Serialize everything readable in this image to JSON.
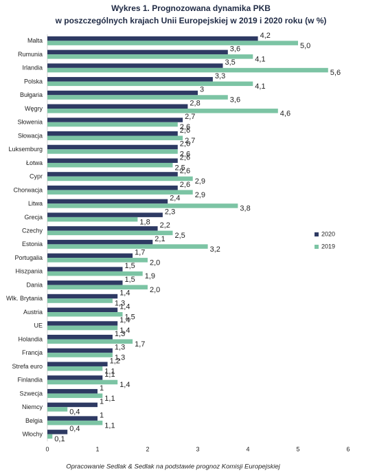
{
  "chart_data": {
    "type": "hbar",
    "title": [
      "Wykres 1. Prognozowana dynamika PKB",
      "w poszczególnych krajach Unii Europejskiej w 2019 i 2020 roku (w %)"
    ],
    "note": "Opracowanie Sedlak & Sedlak na podstawie prognoz Komisji Europejskiej",
    "categories": [
      "Malta",
      "Rumunia",
      "Irlandia",
      "Polska",
      "Bułgaria",
      "Węgry",
      "Słowenia",
      "Słowacja",
      "Luksemburg",
      "Łotwa",
      "Cypr",
      "Chorwacja",
      "Litwa",
      "Grecja",
      "Czechy",
      "Estonia",
      "Portugalia",
      "Hiszpania",
      "Dania",
      "Wlk. Brytania",
      "Austria",
      "UE",
      "Holandia",
      "Francja",
      "Strefa euro",
      "Finlandia",
      "Szwecja",
      "Niemcy",
      "Belgia",
      "Włochy"
    ],
    "series": [
      {
        "name": "2020",
        "color": "#2e3a63",
        "values": [
          4.2,
          3.6,
          3.5,
          3.3,
          3,
          2.8,
          2.7,
          2.6,
          2.6,
          2.6,
          2.6,
          2.6,
          2.4,
          2.3,
          2.2,
          2.1,
          1.7,
          1.5,
          1.5,
          1.4,
          1.4,
          1.4,
          1.3,
          1.3,
          1.2,
          1.1,
          1,
          1,
          1,
          0.4
        ],
        "value_labels": [
          "4,2",
          "3,6",
          "3,5",
          "3,3",
          "3",
          "2,8",
          "2,7",
          "2,6",
          "2,6",
          "2,6",
          "2,6",
          "2,6",
          "2,4",
          "2,3",
          "2,2",
          "2,1",
          "1,7",
          "1,5",
          "1,5",
          "1,4",
          "1,4",
          "1,4",
          "1,3",
          "1,3",
          "1,2",
          "1,1",
          "1",
          "1",
          "1",
          "0,4"
        ]
      },
      {
        "name": "2019",
        "color": "#7cc4a4",
        "values": [
          5.0,
          4.1,
          5.6,
          4.1,
          3.6,
          4.6,
          2.6,
          2.7,
          2.6,
          2.5,
          2.9,
          2.9,
          3.8,
          1.8,
          2.5,
          3.2,
          2.0,
          1.9,
          2.0,
          1.3,
          1.5,
          1.4,
          1.7,
          1.3,
          1.1,
          1.4,
          1.1,
          0.4,
          1.1,
          0.1
        ],
        "value_labels": [
          "5,0",
          "4,1",
          "5,6",
          "4,1",
          "3,6",
          "4,6",
          "2,6",
          "2,7",
          "2,6",
          "2,5",
          "2,9",
          "2,9",
          "3,8",
          "1,8",
          "2,5",
          "3,2",
          "2,0",
          "1,9",
          "2,0",
          "1,3",
          "1,5",
          "1,4",
          "1,7",
          "1,3",
          "1,1",
          "1,4",
          "1,1",
          "0,4",
          "1,1",
          "0,1"
        ]
      }
    ],
    "xlim": [
      0,
      6
    ],
    "xticks": [
      0,
      1,
      2,
      3,
      4,
      5,
      6
    ],
    "legend": "right"
  }
}
